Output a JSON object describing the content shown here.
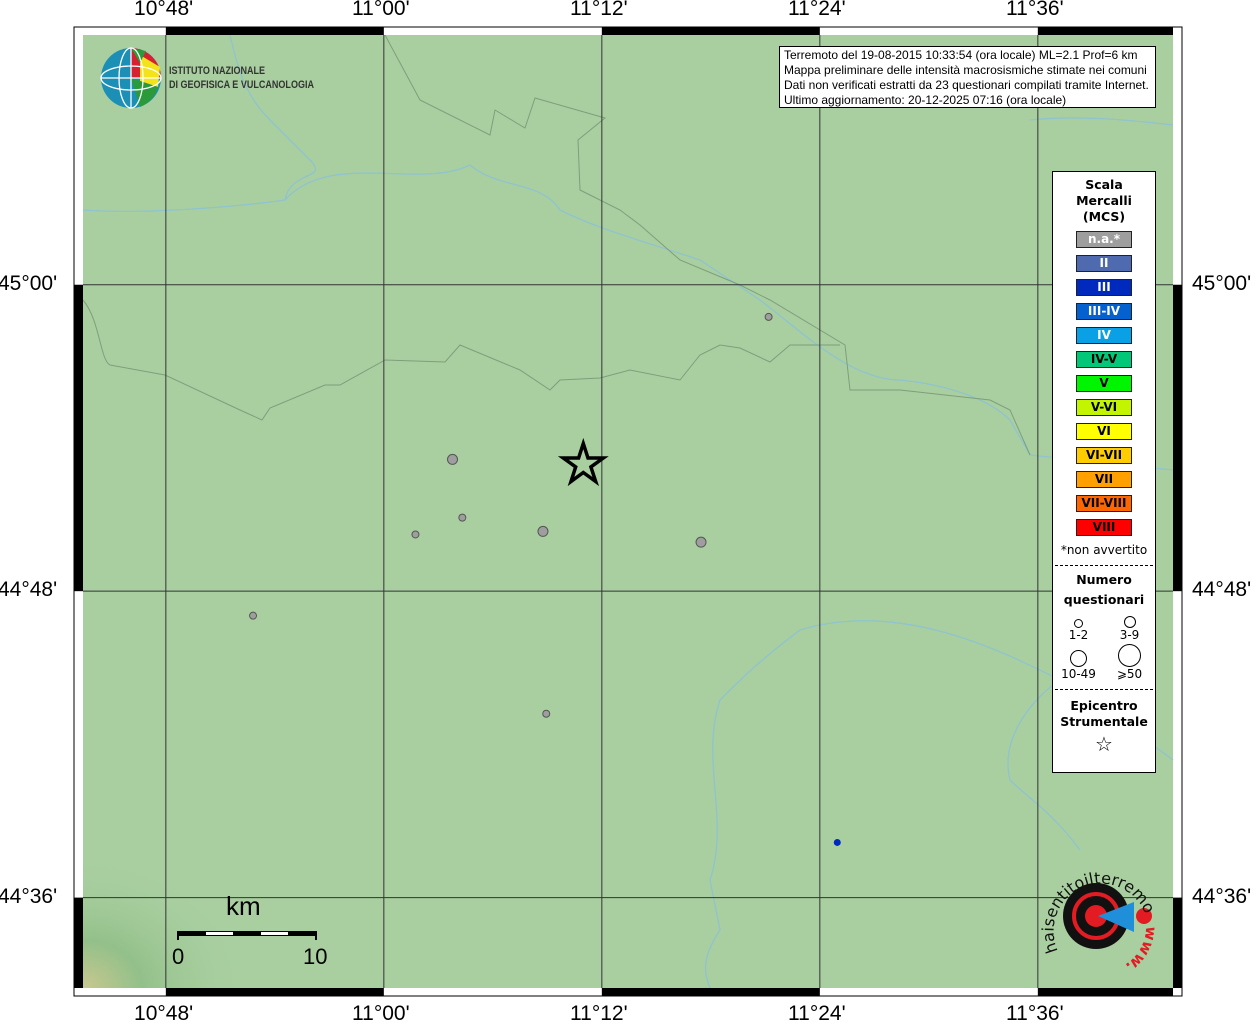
{
  "map": {
    "extent": {
      "lon_min": 10.724,
      "lon_max": 11.724,
      "lat_min": 44.541,
      "lat_max": 45.163
    },
    "land_color": "#a9cfa0",
    "grid_lons": [
      10.8,
      11.0,
      11.2,
      11.4,
      11.6
    ],
    "grid_lats": [
      45.0,
      44.8,
      44.6
    ],
    "lon_labels": [
      "10°48'",
      "11°00'",
      "11°12'",
      "11°24'",
      "11°36'"
    ],
    "lat_labels": [
      "45°00'",
      "44°48'",
      "44°36'"
    ],
    "epicenter": {
      "lon": 11.183,
      "lat": 44.884
    },
    "stations": [
      {
        "lon": 11.063,
        "lat": 44.886,
        "intensity": "n.a.*",
        "questionari": "3-9"
      },
      {
        "lon": 11.029,
        "lat": 44.837,
        "intensity": "n.a.*",
        "questionari": "1-2"
      },
      {
        "lon": 11.072,
        "lat": 44.848,
        "intensity": "n.a.*",
        "questionari": "1-2"
      },
      {
        "lon": 11.146,
        "lat": 44.839,
        "intensity": "n.a.*",
        "questionari": "3-9"
      },
      {
        "lon": 11.291,
        "lat": 44.832,
        "intensity": "n.a.*",
        "questionari": "3-9"
      },
      {
        "lon": 11.353,
        "lat": 44.979,
        "intensity": "n.a.*",
        "questionari": "1-2"
      },
      {
        "lon": 10.88,
        "lat": 44.784,
        "intensity": "n.a.*",
        "questionari": "1-2"
      },
      {
        "lon": 11.149,
        "lat": 44.72,
        "intensity": "n.a.*",
        "questionari": "1-2"
      },
      {
        "lon": 11.416,
        "lat": 44.636,
        "intensity": "III",
        "questionari": "1-2"
      }
    ],
    "scale": {
      "unit": "km",
      "start": "0",
      "end": "10"
    }
  },
  "info": {
    "lines": [
      "Terremoto del 19-08-2015 10:33:54 (ora locale) ML=2.1 Prof=6 km",
      "Mappa preliminare delle intensità macrosismiche stimate nei comuni",
      "Dati non verificati estratti da 23 questionari compilati tramite Internet.",
      "Ultimo aggiornamento: 20-12-2025 07:16 (ora locale)"
    ]
  },
  "logo_ingv": {
    "line1": "ISTITUTO NAZIONALE",
    "line2": "DI GEOFISICA E VULCANOLOGIA"
  },
  "logo_hst": {
    "text": "haisentitoilterremoto.it www."
  },
  "legend": {
    "title_lines": [
      "Scala",
      "Mercalli",
      "(MCS)"
    ],
    "classes": [
      {
        "label": "n.a.*",
        "color": "#9e9e9e",
        "text_color": "#ffffff"
      },
      {
        "label": "II",
        "color": "#4f6aae",
        "text_color": "#ffffff"
      },
      {
        "label": "III",
        "color": "#0029bd",
        "text_color": "#ffffff"
      },
      {
        "label": "III-IV",
        "color": "#0560d0",
        "text_color": "#ffffff"
      },
      {
        "label": "IV",
        "color": "#0aa0e6",
        "text_color": "#ffffff"
      },
      {
        "label": "IV-V",
        "color": "#00c878",
        "text_color": "#000000"
      },
      {
        "label": "V",
        "color": "#00f500",
        "text_color": "#000000"
      },
      {
        "label": "V-VI",
        "color": "#c4f500",
        "text_color": "#000000"
      },
      {
        "label": "VI",
        "color": "#ffff00",
        "text_color": "#000000"
      },
      {
        "label": "VI-VII",
        "color": "#ffcc00",
        "text_color": "#000000"
      },
      {
        "label": "VII",
        "color": "#ffa000",
        "text_color": "#000000"
      },
      {
        "label": "VII-VIII",
        "color": "#ff6600",
        "text_color": "#000000"
      },
      {
        "label": "VIII",
        "color": "#ff0000",
        "text_color": "#000000"
      }
    ],
    "note": "*non avvertito",
    "questionari_title_1": "Numero",
    "questionari_title_2": "questionari",
    "sizes": [
      "1-2",
      "3-9",
      "10-49",
      "⩾50"
    ],
    "epicentro_1": "Epicentro",
    "epicentro_2": "Strumentale"
  }
}
